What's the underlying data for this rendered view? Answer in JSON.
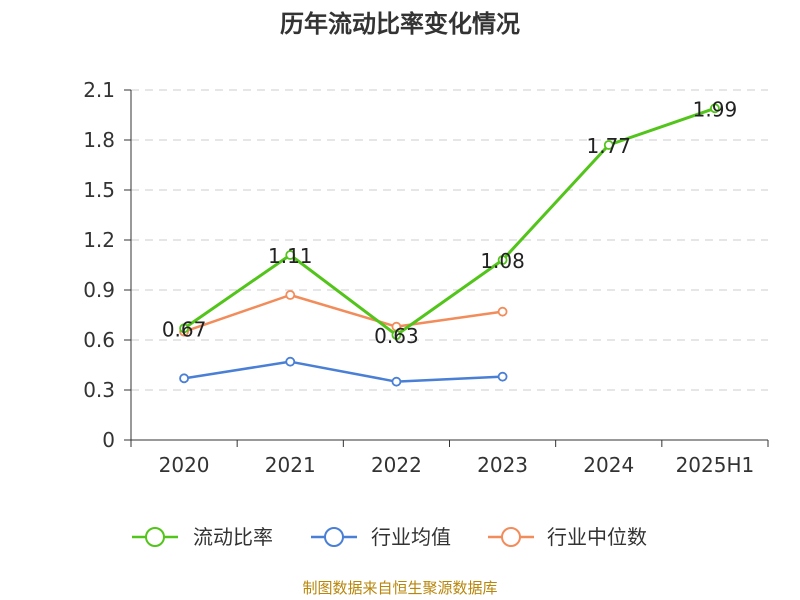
{
  "title": "历年流动比率变化情况",
  "source_note": "制图数据来自恒生聚源数据库",
  "colors": {
    "current_ratio": "#52c41a",
    "industry_mean": "#4a7fd6",
    "industry_median": "#f28c5a",
    "axis": "#333333",
    "grid": "#cccccc"
  },
  "chart_data": {
    "type": "line",
    "title": "历年流动比率变化情况",
    "categories": [
      "2020",
      "2021",
      "2022",
      "2023",
      "2024",
      "2025H1"
    ],
    "y_ticks": [
      "0",
      "0.3",
      "0.6",
      "0.9",
      "1.2",
      "1.5",
      "1.8",
      "2.1"
    ],
    "ylim": [
      0,
      2.1
    ],
    "grid": true,
    "legend_position": "bottom",
    "series": [
      {
        "name": "流动比率",
        "values": [
          0.67,
          1.11,
          0.63,
          1.08,
          1.77,
          1.99
        ],
        "labels": [
          "0.67",
          "1.11",
          "0.63",
          "1.08",
          "1.77",
          "1.99"
        ],
        "color": "#52c41a"
      },
      {
        "name": "行业均值",
        "values": [
          0.37,
          0.47,
          0.35,
          0.38,
          null,
          null
        ],
        "color": "#4a7fd6"
      },
      {
        "name": "行业中位数",
        "values": [
          0.65,
          0.87,
          0.68,
          0.77,
          null,
          null
        ],
        "color": "#f28c5a"
      }
    ]
  }
}
